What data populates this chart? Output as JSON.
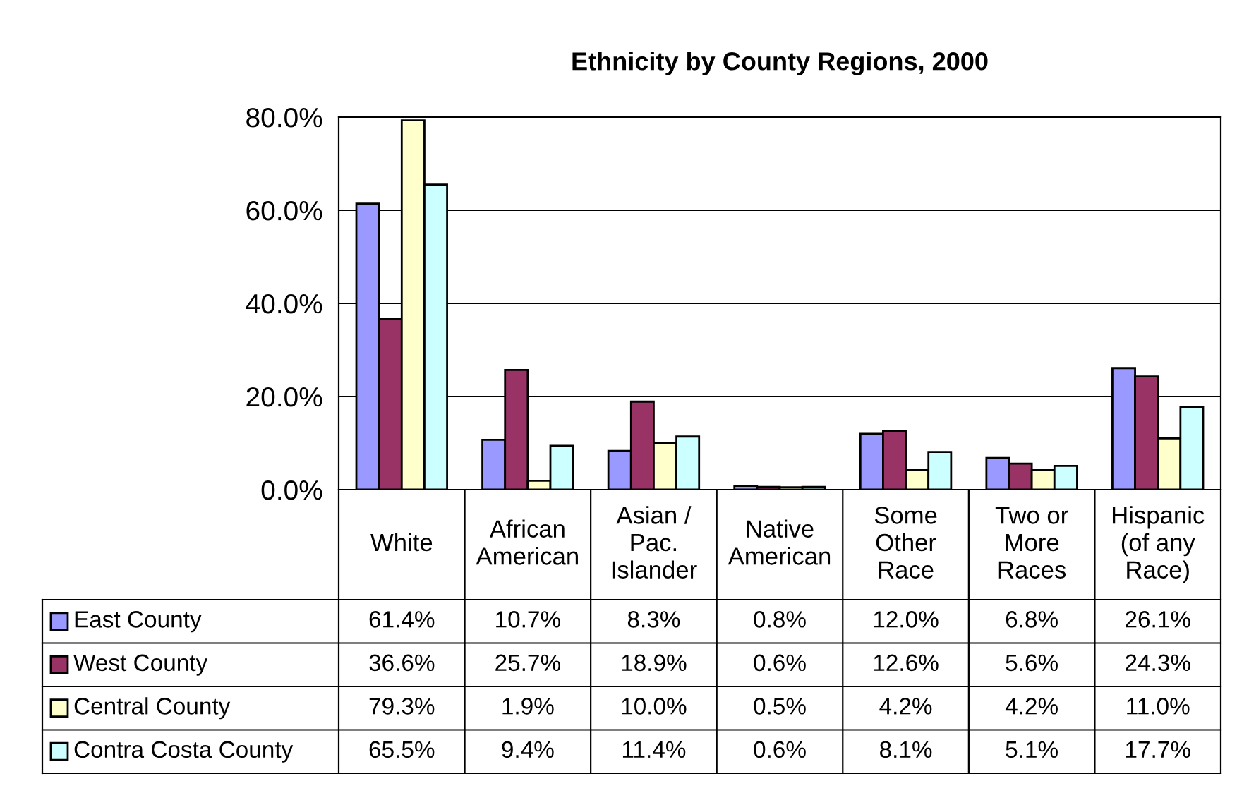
{
  "chart_data": {
    "type": "bar",
    "title": "Ethnicity by County Regions, 2000",
    "categories": [
      "White",
      "African\nAmerican",
      "Asian /\nPac.\nIslander",
      "Native\nAmerican",
      "Some\nOther\nRace",
      "Two or\nMore\nRaces",
      "Hispanic\n(of any\nRace)"
    ],
    "series": [
      {
        "name": "East County",
        "color": "#9999ff",
        "values": [
          61.4,
          10.7,
          8.3,
          0.8,
          12.0,
          6.8,
          26.1
        ],
        "value_labels": [
          "61.4%",
          "10.7%",
          "8.3%",
          "0.8%",
          "12.0%",
          "6.8%",
          "26.1%"
        ]
      },
      {
        "name": "West County",
        "color": "#993366",
        "values": [
          36.6,
          25.7,
          18.9,
          0.6,
          12.6,
          5.6,
          24.3
        ],
        "value_labels": [
          "36.6%",
          "25.7%",
          "18.9%",
          "0.6%",
          "12.6%",
          "5.6%",
          "24.3%"
        ]
      },
      {
        "name": "Central County",
        "color": "#ffffcc",
        "values": [
          79.3,
          1.9,
          10.0,
          0.5,
          4.2,
          4.2,
          11.0
        ],
        "value_labels": [
          "79.3%",
          "1.9%",
          "10.0%",
          "0.5%",
          "4.2%",
          "4.2%",
          "11.0%"
        ]
      },
      {
        "name": "Contra Costa County",
        "color": "#ccffff",
        "values": [
          65.5,
          9.4,
          11.4,
          0.6,
          8.1,
          5.1,
          17.7
        ],
        "value_labels": [
          "65.5%",
          "9.4%",
          "11.4%",
          "0.6%",
          "8.1%",
          "5.1%",
          "17.7%"
        ]
      }
    ],
    "ylim": [
      0,
      80
    ],
    "yticks": [
      {
        "value": 0,
        "label": "0.0%"
      },
      {
        "value": 20,
        "label": "20.0%"
      },
      {
        "value": 40,
        "label": "40.0%"
      },
      {
        "value": 60,
        "label": "60.0%"
      },
      {
        "value": 80,
        "label": "80.0%"
      }
    ],
    "grid": "y",
    "legend": "bottom left"
  }
}
